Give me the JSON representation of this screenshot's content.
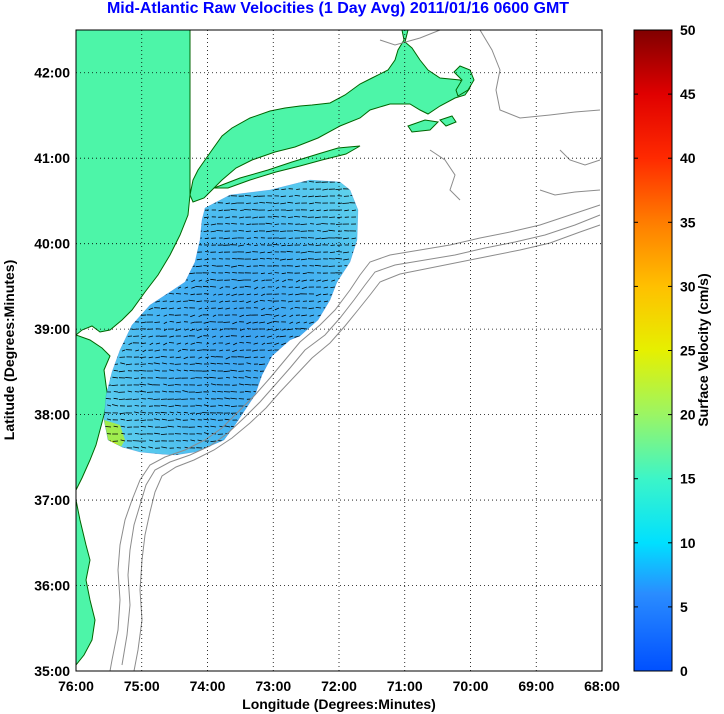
{
  "title": "Mid-Atlantic Raw Velocities (1 Day Avg) 2011/01/16 0600 GMT",
  "chart_data": {
    "type": "heatmap",
    "xlabel": "Longitude (Degrees:Minutes)",
    "ylabel": "Latitude (Degrees:Minutes)",
    "xlim": [
      -76,
      -68
    ],
    "ylim": [
      35,
      42.5
    ],
    "grid": true,
    "x_tick_labels": [
      "76:00",
      "75:00",
      "74:00",
      "73:00",
      "72:00",
      "71:00",
      "70:00",
      "69:00",
      "68:00"
    ],
    "y_tick_labels": [
      "35:00",
      "36:00",
      "37:00",
      "38:00",
      "39:00",
      "40:00",
      "41:00",
      "42:00"
    ],
    "colorbar": {
      "label": "Surface Velocity (cm/s)",
      "range": [
        0,
        50
      ],
      "tick_labels": [
        "0",
        "5",
        "10",
        "15",
        "20",
        "25",
        "30",
        "35",
        "40",
        "45",
        "50"
      ],
      "colormap": "jet"
    },
    "velocity_field_range_cm_s": [
      2,
      20
    ],
    "land_color": "#4df5a8",
    "coastline_color": "#006400",
    "bathymetry_color": "#909090"
  }
}
